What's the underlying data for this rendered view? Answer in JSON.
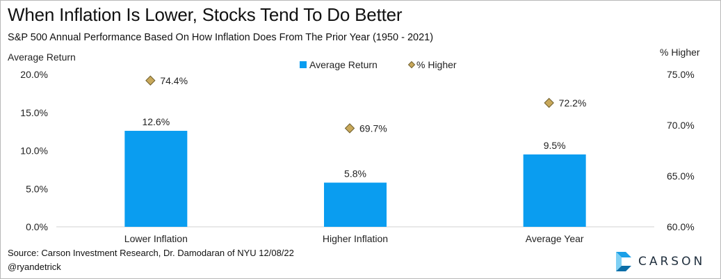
{
  "header": {
    "title": "When Inflation Is Lower, Stocks Tend To Do Better",
    "subtitle": "S&P 500 Annual Performance Based On How Inflation Does From The Prior Year (1950 - 2021)"
  },
  "footer": {
    "source": "Source: Carson Investment Research, Dr. Damodaran of NYU  12/08/22",
    "handle": "@ryandetrick"
  },
  "brand": {
    "name": "CARSON",
    "logo_colors": [
      "#1aa0e8",
      "#7fd0f4",
      "#0b6ea8"
    ]
  },
  "colors": {
    "bar": "#0a9df0",
    "marker": "#c8a85a",
    "marker_stroke": "#6f5f2e",
    "text": "#222222"
  },
  "chart_data": {
    "type": "bar",
    "title": "When Inflation Is Lower, Stocks Tend To Do Better",
    "subtitle": "S&P 500 Annual Performance Based On How Inflation Does From The Prior Year (1950 - 2021)",
    "categories": [
      "Lower Inflation",
      "Higher Inflation",
      "Average Year"
    ],
    "legend_position": "top-center",
    "grid": false,
    "series": [
      {
        "name": "Average Return",
        "kind": "bar",
        "axis": "left",
        "values": [
          12.6,
          5.8,
          9.5
        ],
        "labels": [
          "12.6%",
          "5.8%",
          "9.5%"
        ]
      },
      {
        "name": "% Higher",
        "kind": "marker",
        "marker": "diamond",
        "axis": "right",
        "values": [
          74.4,
          69.7,
          72.2
        ],
        "labels": [
          "74.4%",
          "69.7%",
          "72.2%"
        ]
      }
    ],
    "y_left": {
      "label": "Average Return",
      "range": [
        0,
        20
      ],
      "ticks": [
        0,
        5,
        10,
        15,
        20
      ],
      "tick_labels": [
        "0.0%",
        "5.0%",
        "10.0%",
        "15.0%",
        "20.0%"
      ]
    },
    "y_right": {
      "label": "% Higher",
      "range": [
        60,
        75
      ],
      "ticks": [
        60,
        65,
        70,
        75
      ],
      "tick_labels": [
        "60.0%",
        "65.0%",
        "70.0%",
        "75.0%"
      ]
    }
  }
}
